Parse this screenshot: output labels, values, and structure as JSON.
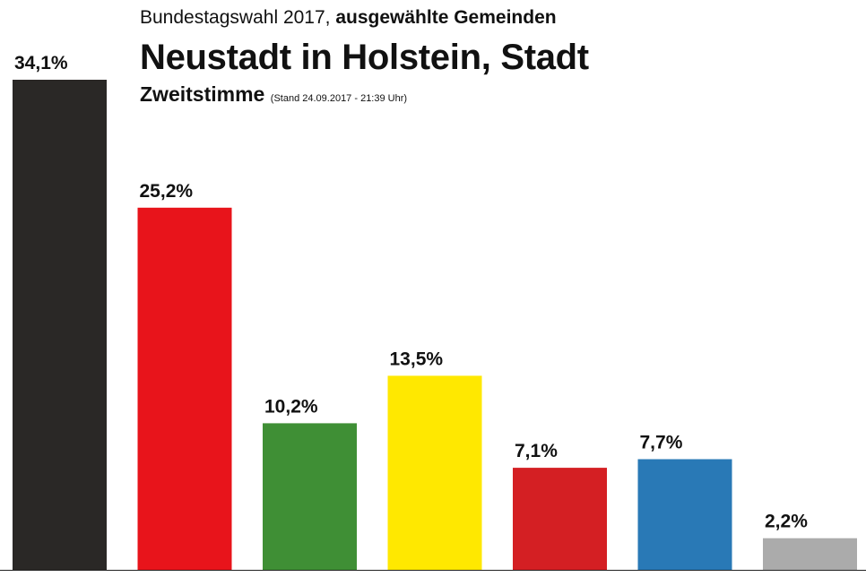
{
  "header": {
    "supertitle_plain": "Bundestagswahl 2017,",
    "supertitle_bold": "ausgewählte Gemeinden",
    "title": "Neustadt in Holstein, Stadt",
    "subtitle_main": "Zweitstimme",
    "subtitle_small": "(Stand 24.09.2017 - 21:39 Uhr)"
  },
  "chart_data": {
    "type": "bar",
    "values": [
      34.1,
      25.2,
      10.2,
      13.5,
      7.1,
      7.7,
      2.2
    ],
    "value_labels": [
      "34,1%",
      "25,2%",
      "10,2%",
      "13,5%",
      "7,1%",
      "7,7%",
      "2,2%"
    ],
    "colors": [
      "#2a2826",
      "#e8141b",
      "#3f8f35",
      "#ffe800",
      "#d41f23",
      "#2979b6",
      "#ababab"
    ],
    "ylim": [
      0,
      34.1
    ],
    "grid": false,
    "legend": "none"
  }
}
